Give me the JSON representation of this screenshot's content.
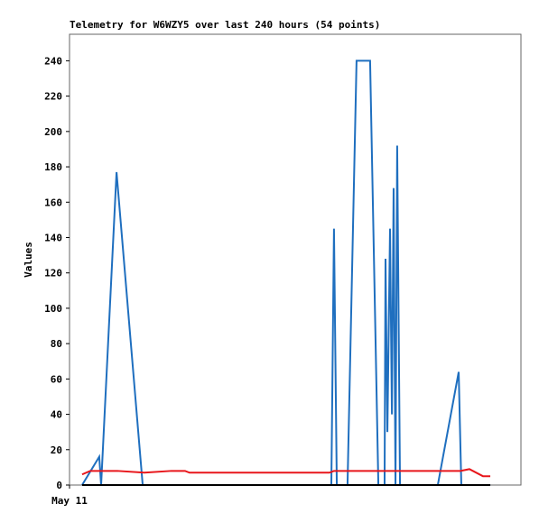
{
  "chart_data": {
    "type": "line",
    "title": "Telemetry for W6WZY5 over last 240 hours (54 points)",
    "y_label": "Values",
    "xlim": [
      0,
      240
    ],
    "xticks": [
      {
        "value": 0,
        "label": "May 11"
      }
    ],
    "ylim": [
      0,
      255
    ],
    "yticks": [
      0,
      20,
      40,
      60,
      80,
      100,
      120,
      140,
      160,
      180,
      200,
      220,
      240
    ],
    "series": [
      {
        "color": "#1f6fbf",
        "x": [
          6.7,
          15.8,
          16.8,
          25,
          38.9,
          139.2,
          140.6,
          142.1,
          147.8,
          152.6,
          159.8,
          164.2,
          167.5,
          168,
          169,
          170.4,
          171.4,
          172.3,
          173.3,
          174.2,
          175.7,
          195.8,
          206.9,
          208.3,
          223.7
        ],
        "values": [
          0,
          16,
          0,
          177,
          0,
          0,
          145,
          0,
          0,
          240,
          240,
          0,
          0,
          128,
          30,
          145,
          40,
          168,
          0,
          192,
          0,
          0,
          64,
          0,
          0
        ]
      },
      {
        "color": "#e8161b",
        "x": [
          6.7,
          11,
          25.4,
          39.8,
          54.2,
          61.4,
          63.8,
          138.2,
          140.6,
          207.8,
          212.6,
          219.8,
          223.7
        ],
        "values": [
          6,
          8,
          8,
          7,
          8,
          8,
          7,
          7,
          8,
          8,
          9,
          5,
          5
        ]
      },
      {
        "color": "#000000",
        "x": [
          6.7,
          223.7
        ],
        "values": [
          0,
          0
        ]
      }
    ]
  }
}
